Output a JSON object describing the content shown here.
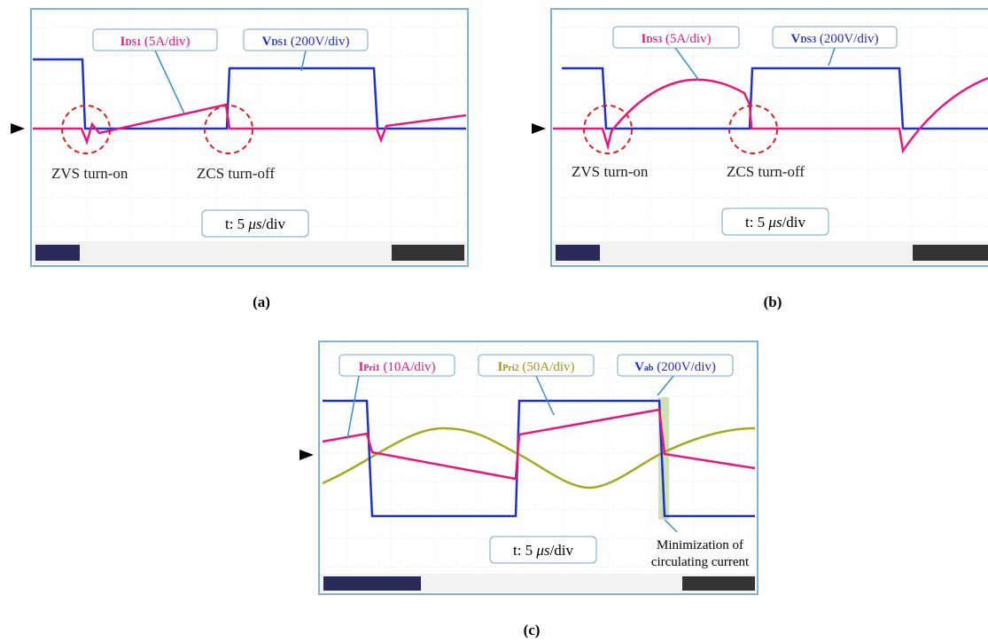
{
  "panels": [
    {
      "caption": "(a)",
      "labels": [
        {
          "main": "I",
          "sub": "DS1",
          "unit": "(5A/div)"
        },
        {
          "main": "V",
          "sub": "DS1",
          "unit": "(200V/div)"
        }
      ],
      "annotations": [
        "ZVS turn-on",
        "ZCS turn-off"
      ],
      "time": {
        "prefix": "t: 5",
        "unit": "μs",
        "suffix": "/div"
      }
    },
    {
      "caption": "(b)",
      "labels": [
        {
          "main": "I",
          "sub": "DS3",
          "unit": "(5A/div)"
        },
        {
          "main": "V",
          "sub": "DS3",
          "unit": "(200V/div)"
        }
      ],
      "annotations": [
        "ZVS turn-on",
        "ZCS turn-off"
      ],
      "time": {
        "prefix": "t: 5",
        "unit": "μs",
        "suffix": "/div"
      }
    },
    {
      "caption": "(c)",
      "labels": [
        {
          "main": "I",
          "sub": "Pri1",
          "unit": "(10A/div)"
        },
        {
          "main": "I",
          "sub": "Pri2",
          "unit": "(50A/div)"
        },
        {
          "main": "V",
          "sub": "ab",
          "unit": "(200V/div)"
        }
      ],
      "annotations": [
        "Minimization of",
        "circulating current"
      ],
      "time": {
        "prefix": "t: 5",
        "unit": "μs",
        "suffix": "/div"
      }
    }
  ]
}
